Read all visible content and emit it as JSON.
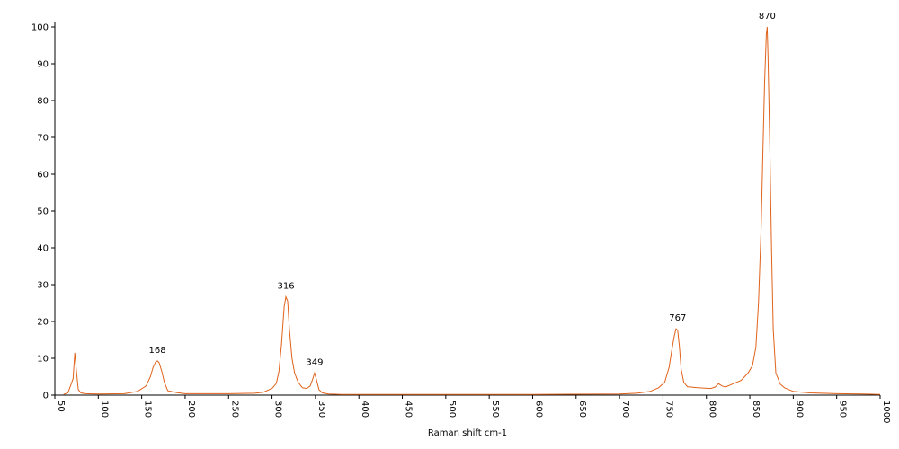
{
  "chart_data": {
    "type": "line",
    "title": "",
    "xlabel": "Raman shift cm-1",
    "ylabel": "",
    "xlim": [
      50,
      1000
    ],
    "ylim": [
      0,
      100
    ],
    "grid": false,
    "legend": "none",
    "x_ticks": [
      50,
      100,
      150,
      200,
      250,
      300,
      350,
      400,
      450,
      500,
      550,
      600,
      650,
      700,
      750,
      800,
      850,
      900,
      950,
      1000
    ],
    "y_ticks": [
      0,
      10,
      20,
      30,
      40,
      50,
      60,
      70,
      80,
      90,
      100
    ],
    "line_color": "#e0621a",
    "series": [
      {
        "x": [
          60,
          65,
          68,
          71,
          73,
          75,
          77,
          80,
          85,
          100,
          130,
          145,
          155,
          160,
          163,
          166,
          168,
          170,
          173,
          176,
          180,
          190,
          200,
          250,
          280,
          290,
          300,
          305,
          308,
          311,
          314,
          316,
          318,
          320,
          323,
          326,
          330,
          335,
          340,
          344,
          347,
          349,
          351,
          354,
          358,
          365,
          380,
          450,
          600,
          700,
          720,
          735,
          745,
          752,
          757,
          760,
          763,
          765,
          767,
          769,
          771,
          774,
          778,
          790,
          805,
          810,
          814,
          818,
          822,
          830,
          840,
          848,
          853,
          857,
          860,
          863,
          865,
          867,
          869,
          870,
          871,
          873,
          875,
          877,
          880,
          885,
          890,
          900,
          920,
          950,
          980,
          1000
        ],
        "y": [
          0.2,
          0.6,
          2.5,
          4.5,
          11.5,
          6,
          1.5,
          0.6,
          0.4,
          0.3,
          0.4,
          1,
          2.5,
          5,
          7.5,
          9,
          9.3,
          8.8,
          6.5,
          3.5,
          1.2,
          0.7,
          0.4,
          0.4,
          0.5,
          0.8,
          1.8,
          3.2,
          6.5,
          14,
          24,
          26.7,
          25.5,
          18,
          10,
          6,
          3.5,
          2,
          1.8,
          2.5,
          4.5,
          6,
          4.3,
          1.5,
          0.6,
          0.3,
          0.2,
          0.2,
          0.2,
          0.3,
          0.5,
          1,
          2,
          3.5,
          7.5,
          12,
          16,
          18,
          17.6,
          13,
          7,
          3.5,
          2.3,
          2,
          1.8,
          2.2,
          3.1,
          2.5,
          2.2,
          3,
          4,
          6,
          8,
          13,
          25,
          45,
          65,
          85,
          98,
          100,
          92,
          68,
          40,
          18,
          6,
          3,
          2,
          1,
          0.6,
          0.4,
          0.3,
          0.2
        ]
      }
    ],
    "annotations": [
      {
        "x": 168,
        "y": 9.3,
        "text": "168"
      },
      {
        "x": 316,
        "y": 26.7,
        "text": "316"
      },
      {
        "x": 349,
        "y": 6,
        "text": "349"
      },
      {
        "x": 767,
        "y": 18,
        "text": "767"
      },
      {
        "x": 870,
        "y": 100,
        "text": "870"
      }
    ]
  }
}
